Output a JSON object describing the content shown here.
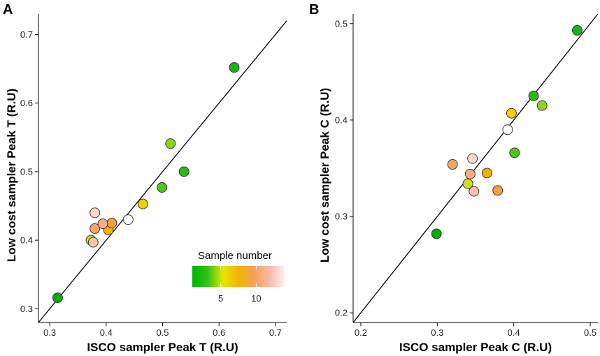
{
  "chart_data": [
    {
      "type": "scatter",
      "panel": "A",
      "title": "",
      "xlabel": "ISCO sampler Peak T (R.U)",
      "ylabel": "Low cost sampler Peak T (R.U)",
      "xlim": [
        0.28,
        0.72
      ],
      "ylim": [
        0.28,
        0.73
      ],
      "xticks": [
        0.3,
        0.4,
        0.5,
        0.6,
        0.7
      ],
      "yticks": [
        0.3,
        0.4,
        0.5,
        0.6,
        0.7
      ],
      "xtick_labels": [
        "0.3",
        "0.4",
        "0.5",
        "0.6",
        "0.7"
      ],
      "ytick_labels": [
        "0.3",
        "0.4",
        "0.5",
        "0.6",
        "0.7"
      ],
      "reference_line": "y = x",
      "points": [
        {
          "sample": 1,
          "x": 0.314,
          "y": 0.316
        },
        {
          "sample": 2,
          "x": 0.627,
          "y": 0.652
        },
        {
          "sample": 3,
          "x": 0.538,
          "y": 0.5
        },
        {
          "sample": 4,
          "x": 0.499,
          "y": 0.477
        },
        {
          "sample": 5,
          "x": 0.514,
          "y": 0.541
        },
        {
          "sample": 6,
          "x": 0.373,
          "y": 0.4
        },
        {
          "sample": 7,
          "x": 0.465,
          "y": 0.453
        },
        {
          "sample": 8,
          "x": 0.404,
          "y": 0.415
        },
        {
          "sample": 9,
          "x": 0.41,
          "y": 0.425
        },
        {
          "sample": 10,
          "x": 0.38,
          "y": 0.417
        },
        {
          "sample": 11,
          "x": 0.394,
          "y": 0.424
        },
        {
          "sample": 12,
          "x": 0.377,
          "y": 0.397
        },
        {
          "sample": 13,
          "x": 0.38,
          "y": 0.44
        },
        {
          "sample": 14,
          "x": 0.439,
          "y": 0.43
        }
      ]
    },
    {
      "type": "scatter",
      "panel": "B",
      "title": "",
      "xlabel": "ISCO sampler Peak C (R.U)",
      "ylabel": "Low cost sampler Peak C (R.U)",
      "xlim": [
        0.19,
        0.51
      ],
      "ylim": [
        0.19,
        0.51
      ],
      "xticks": [
        0.2,
        0.3,
        0.4,
        0.5
      ],
      "yticks": [
        0.2,
        0.3,
        0.4,
        0.5
      ],
      "xtick_labels": [
        "0.2",
        "0.3",
        "0.4",
        "0.5"
      ],
      "ytick_labels": [
        "0.2",
        "0.3",
        "0.4",
        "0.5"
      ],
      "reference_line": "y = x",
      "points": [
        {
          "sample": 1,
          "x": 0.299,
          "y": 0.282
        },
        {
          "sample": 2,
          "x": 0.483,
          "y": 0.493
        },
        {
          "sample": 3,
          "x": 0.426,
          "y": 0.425
        },
        {
          "sample": 4,
          "x": 0.401,
          "y": 0.366
        },
        {
          "sample": 5,
          "x": 0.437,
          "y": 0.415
        },
        {
          "sample": 6,
          "x": 0.34,
          "y": 0.334
        },
        {
          "sample": 7,
          "x": 0.397,
          "y": 0.407
        },
        {
          "sample": 8,
          "x": 0.365,
          "y": 0.345
        },
        {
          "sample": 9,
          "x": 0.379,
          "y": 0.327
        },
        {
          "sample": 10,
          "x": 0.32,
          "y": 0.354
        },
        {
          "sample": 11,
          "x": 0.343,
          "y": 0.344
        },
        {
          "sample": 12,
          "x": 0.348,
          "y": 0.326
        },
        {
          "sample": 13,
          "x": 0.346,
          "y": 0.36
        },
        {
          "sample": 14,
          "x": 0.392,
          "y": 0.39
        }
      ]
    }
  ],
  "panels": {
    "a_letter": "A",
    "b_letter": "B"
  },
  "legend": {
    "title": "Sample number",
    "ticks": [
      5,
      10
    ],
    "tick_labels": [
      "5",
      "10"
    ],
    "range": [
      1,
      14
    ],
    "placement": "bottom-right of panel A",
    "gradient_colors": [
      "#00b400",
      "#33c21a",
      "#e6e600",
      "#f2b400",
      "#f5a05a",
      "#f7b8a8",
      "#fdf0ee"
    ]
  },
  "colors": {
    "point_stroke": "#2a2a2a",
    "reference_line": "#000000",
    "axis": "#000000",
    "sample_colors": {
      "1": "#00b000",
      "2": "#14b514",
      "3": "#28bb14",
      "4": "#52c51a",
      "5": "#8fd21e",
      "6": "#d0e01a",
      "7": "#f0d000",
      "8": "#f2b000",
      "9": "#f5a03c",
      "10": "#f5a667",
      "11": "#f7ae86",
      "12": "#f8c0b0",
      "13": "#fbd8d2",
      "14": "#ffffff"
    }
  }
}
